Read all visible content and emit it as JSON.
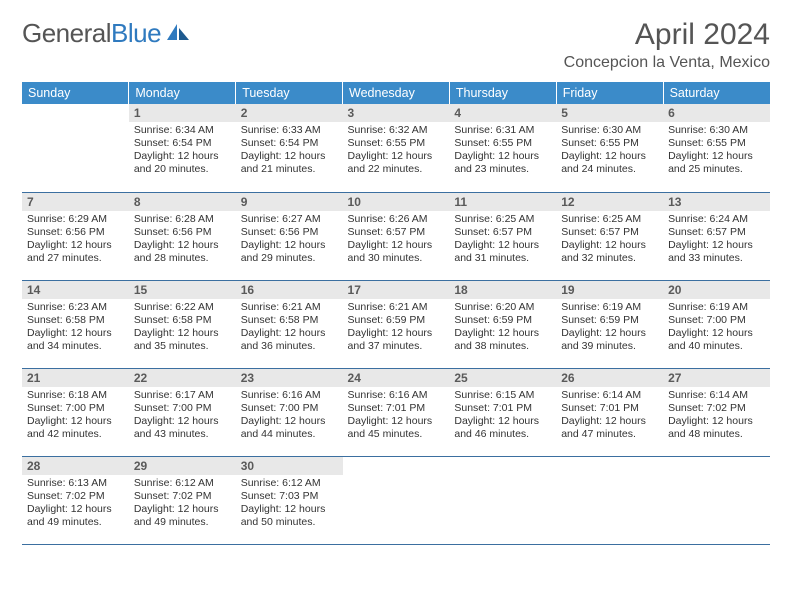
{
  "logo": {
    "text1": "General",
    "text2": "Blue"
  },
  "title": "April 2024",
  "location": "Concepcion la Venta, Mexico",
  "day_headers": [
    "Sunday",
    "Monday",
    "Tuesday",
    "Wednesday",
    "Thursday",
    "Friday",
    "Saturday"
  ],
  "colors": {
    "header_bg": "#3b8bc9",
    "header_text": "#ffffff",
    "week_divider": "#3b6fa0",
    "daynum_bg": "#e8e8e8",
    "daynum_text": "#5a5a5a",
    "body_text": "#333333",
    "title_text": "#555555",
    "logo_gray": "#555555",
    "logo_blue": "#2f7abf"
  },
  "typography": {
    "title_fontsize": 30,
    "location_fontsize": 16,
    "header_fontsize": 12.5,
    "daynum_fontsize": 12,
    "detail_fontsize": 10.5
  },
  "first_weekday_offset": 1,
  "days": [
    {
      "n": 1,
      "sunrise": "6:34 AM",
      "sunset": "6:54 PM",
      "daylight": "12 hours and 20 minutes."
    },
    {
      "n": 2,
      "sunrise": "6:33 AM",
      "sunset": "6:54 PM",
      "daylight": "12 hours and 21 minutes."
    },
    {
      "n": 3,
      "sunrise": "6:32 AM",
      "sunset": "6:55 PM",
      "daylight": "12 hours and 22 minutes."
    },
    {
      "n": 4,
      "sunrise": "6:31 AM",
      "sunset": "6:55 PM",
      "daylight": "12 hours and 23 minutes."
    },
    {
      "n": 5,
      "sunrise": "6:30 AM",
      "sunset": "6:55 PM",
      "daylight": "12 hours and 24 minutes."
    },
    {
      "n": 6,
      "sunrise": "6:30 AM",
      "sunset": "6:55 PM",
      "daylight": "12 hours and 25 minutes."
    },
    {
      "n": 7,
      "sunrise": "6:29 AM",
      "sunset": "6:56 PM",
      "daylight": "12 hours and 27 minutes."
    },
    {
      "n": 8,
      "sunrise": "6:28 AM",
      "sunset": "6:56 PM",
      "daylight": "12 hours and 28 minutes."
    },
    {
      "n": 9,
      "sunrise": "6:27 AM",
      "sunset": "6:56 PM",
      "daylight": "12 hours and 29 minutes."
    },
    {
      "n": 10,
      "sunrise": "6:26 AM",
      "sunset": "6:57 PM",
      "daylight": "12 hours and 30 minutes."
    },
    {
      "n": 11,
      "sunrise": "6:25 AM",
      "sunset": "6:57 PM",
      "daylight": "12 hours and 31 minutes."
    },
    {
      "n": 12,
      "sunrise": "6:25 AM",
      "sunset": "6:57 PM",
      "daylight": "12 hours and 32 minutes."
    },
    {
      "n": 13,
      "sunrise": "6:24 AM",
      "sunset": "6:57 PM",
      "daylight": "12 hours and 33 minutes."
    },
    {
      "n": 14,
      "sunrise": "6:23 AM",
      "sunset": "6:58 PM",
      "daylight": "12 hours and 34 minutes."
    },
    {
      "n": 15,
      "sunrise": "6:22 AM",
      "sunset": "6:58 PM",
      "daylight": "12 hours and 35 minutes."
    },
    {
      "n": 16,
      "sunrise": "6:21 AM",
      "sunset": "6:58 PM",
      "daylight": "12 hours and 36 minutes."
    },
    {
      "n": 17,
      "sunrise": "6:21 AM",
      "sunset": "6:59 PM",
      "daylight": "12 hours and 37 minutes."
    },
    {
      "n": 18,
      "sunrise": "6:20 AM",
      "sunset": "6:59 PM",
      "daylight": "12 hours and 38 minutes."
    },
    {
      "n": 19,
      "sunrise": "6:19 AM",
      "sunset": "6:59 PM",
      "daylight": "12 hours and 39 minutes."
    },
    {
      "n": 20,
      "sunrise": "6:19 AM",
      "sunset": "7:00 PM",
      "daylight": "12 hours and 40 minutes."
    },
    {
      "n": 21,
      "sunrise": "6:18 AM",
      "sunset": "7:00 PM",
      "daylight": "12 hours and 42 minutes."
    },
    {
      "n": 22,
      "sunrise": "6:17 AM",
      "sunset": "7:00 PM",
      "daylight": "12 hours and 43 minutes."
    },
    {
      "n": 23,
      "sunrise": "6:16 AM",
      "sunset": "7:00 PM",
      "daylight": "12 hours and 44 minutes."
    },
    {
      "n": 24,
      "sunrise": "6:16 AM",
      "sunset": "7:01 PM",
      "daylight": "12 hours and 45 minutes."
    },
    {
      "n": 25,
      "sunrise": "6:15 AM",
      "sunset": "7:01 PM",
      "daylight": "12 hours and 46 minutes."
    },
    {
      "n": 26,
      "sunrise": "6:14 AM",
      "sunset": "7:01 PM",
      "daylight": "12 hours and 47 minutes."
    },
    {
      "n": 27,
      "sunrise": "6:14 AM",
      "sunset": "7:02 PM",
      "daylight": "12 hours and 48 minutes."
    },
    {
      "n": 28,
      "sunrise": "6:13 AM",
      "sunset": "7:02 PM",
      "daylight": "12 hours and 49 minutes."
    },
    {
      "n": 29,
      "sunrise": "6:12 AM",
      "sunset": "7:02 PM",
      "daylight": "12 hours and 49 minutes."
    },
    {
      "n": 30,
      "sunrise": "6:12 AM",
      "sunset": "7:03 PM",
      "daylight": "12 hours and 50 minutes."
    }
  ],
  "labels": {
    "sunrise": "Sunrise:",
    "sunset": "Sunset:",
    "daylight": "Daylight:"
  }
}
